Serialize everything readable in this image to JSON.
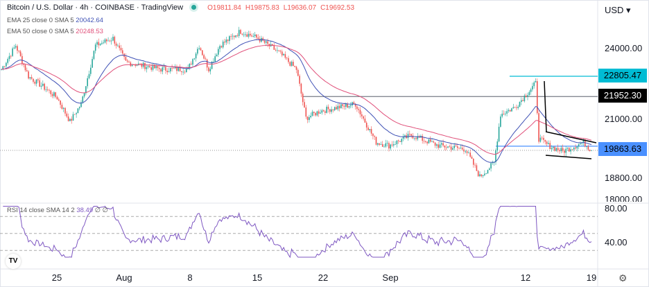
{
  "header": {
    "title": "Bitcoin / U.S. Dollar · 4h · COINBASE · TradingView",
    "open": "O19811.84",
    "high": "H19875.83",
    "low": "L19636.07",
    "close": "C19692.53"
  },
  "indicators": {
    "ema25": {
      "label": "EMA 25 close 0 SMA 5",
      "value": "20042.64",
      "color": "#3f51b5"
    },
    "ema50": {
      "label": "EMA 50 close 0 SMA 5",
      "value": "20248.53",
      "color": "#e0507a"
    },
    "rsi": {
      "label": "RSI 14 close SMA 14 2",
      "value": "38.49",
      "extra": "∅ ∅"
    }
  },
  "price_axis": {
    "currency": "USD ▾",
    "labels": [
      "24000.00",
      "21000.00",
      "18800.00",
      "18000.00"
    ]
  },
  "rsi_axis": {
    "labels": [
      "80.00",
      "40.00"
    ]
  },
  "tags": {
    "high_line": "22805.47",
    "resistance": "21952.30",
    "current": "19863.63"
  },
  "colors": {
    "up": "#26a69a",
    "down": "#ef5350",
    "cyan": "#00bcd4",
    "current": "#4a90ff"
  },
  "time_axis": [
    "25",
    "Aug",
    "8",
    "15",
    "22",
    "Sep",
    "12",
    "19"
  ],
  "chart_data": {
    "type": "candlestick",
    "interval": "4h",
    "ylim": [
      18000,
      25000
    ],
    "close_keypoints": [
      [
        0,
        23100
      ],
      [
        9,
        24100
      ],
      [
        17,
        22800
      ],
      [
        26,
        22370
      ],
      [
        35,
        21900
      ],
      [
        43,
        20900
      ],
      [
        50,
        21640
      ],
      [
        59,
        24100
      ],
      [
        70,
        24400
      ],
      [
        78,
        23400
      ],
      [
        100,
        23100
      ],
      [
        117,
        23100
      ],
      [
        124,
        24100
      ],
      [
        130,
        23100
      ],
      [
        137,
        24100
      ],
      [
        150,
        24700
      ],
      [
        161,
        24400
      ],
      [
        174,
        23800
      ],
      [
        185,
        23100
      ],
      [
        191,
        21050
      ],
      [
        200,
        21350
      ],
      [
        222,
        21640
      ],
      [
        235,
        20030
      ],
      [
        243,
        19890
      ],
      [
        257,
        20330
      ],
      [
        274,
        19890
      ],
      [
        291,
        19740
      ],
      [
        300,
        18580
      ],
      [
        309,
        19160
      ],
      [
        313,
        21200
      ],
      [
        322,
        21500
      ],
      [
        335,
        22500
      ],
      [
        337,
        20180
      ],
      [
        343,
        19890
      ],
      [
        352,
        19650
      ],
      [
        365,
        20030
      ],
      [
        370,
        19690
      ]
    ],
    "levels": [
      22805.47,
      21952.3,
      19863.63
    ],
    "rsi_levels": [
      70,
      50,
      30
    ]
  }
}
